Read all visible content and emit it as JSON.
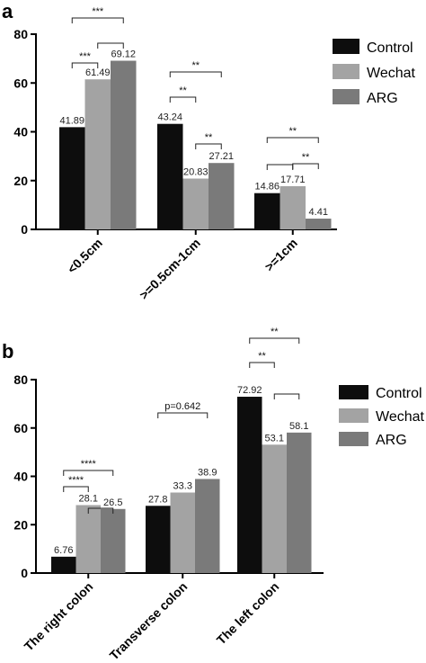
{
  "chart_data": [
    {
      "panel": "a",
      "type": "bar",
      "categories": [
        "<0.5cm",
        ">=0.5cm-1cm",
        ">=1cm"
      ],
      "series": [
        {
          "name": "Control",
          "color": "#0d0d0d",
          "values": [
            41.89,
            43.24,
            14.86
          ]
        },
        {
          "name": "Wechat",
          "color": "#a3a3a3",
          "values": [
            61.49,
            20.83,
            17.71
          ]
        },
        {
          "name": "ARG",
          "color": "#7a7a7a",
          "values": [
            69.12,
            27.21,
            4.41
          ]
        }
      ],
      "value_labels": [
        [
          "41.89",
          "61.49",
          "69.12"
        ],
        [
          "43.24",
          "20.83",
          "27.21"
        ],
        [
          "14.86",
          "17.71",
          "4.41"
        ]
      ],
      "ylim": [
        0,
        80
      ],
      "yticks": [
        0,
        20,
        40,
        60,
        80
      ],
      "legend_position": "top-right",
      "significance": [
        {
          "label": "***",
          "category": 0,
          "from": 0,
          "to": 2
        },
        {
          "label": "***",
          "category": 0,
          "from": 0,
          "to": 1
        },
        {
          "label": "",
          "category": 0,
          "from": 1,
          "to": 2
        },
        {
          "label": "**",
          "category": 1,
          "from": 0,
          "to": 2
        },
        {
          "label": "**",
          "category": 1,
          "from": 0,
          "to": 1
        },
        {
          "label": "**",
          "category": 1,
          "from": 1,
          "to": 2
        },
        {
          "label": "**",
          "category": 2,
          "from": 0,
          "to": 2
        },
        {
          "label": "",
          "category": 2,
          "from": 0,
          "to": 1
        },
        {
          "label": "**",
          "category": 2,
          "from": 1,
          "to": 2
        }
      ]
    },
    {
      "panel": "b",
      "type": "bar",
      "categories": [
        "The right colon",
        "Transverse colon",
        "The left colon"
      ],
      "series": [
        {
          "name": "Control",
          "color": "#0d0d0d",
          "values": [
            6.76,
            27.8,
            72.92
          ]
        },
        {
          "name": "Wechat",
          "color": "#a3a3a3",
          "values": [
            28.1,
            33.3,
            53.1
          ]
        },
        {
          "name": "ARG",
          "color": "#7a7a7a",
          "values": [
            26.5,
            38.9,
            58.1
          ]
        }
      ],
      "value_labels": [
        [
          "6.76",
          "28.1",
          "26.5"
        ],
        [
          "27.8",
          "33.3",
          "38.9"
        ],
        [
          "72.92",
          "53.1",
          "58.1"
        ]
      ],
      "ylim": [
        0,
        80
      ],
      "yticks": [
        0,
        20,
        40,
        60,
        80
      ],
      "legend_position": "top-right",
      "significance": [
        {
          "label": "****",
          "category": 0,
          "from": 0,
          "to": 2
        },
        {
          "label": "****",
          "category": 0,
          "from": 0,
          "to": 1
        },
        {
          "label": "",
          "category": 0,
          "from": 1,
          "to": 2
        },
        {
          "label": "p=0.642",
          "category": 1,
          "from": 0,
          "to": 2
        },
        {
          "label": "**",
          "category": 2,
          "from": 0,
          "to": 2
        },
        {
          "label": "**",
          "category": 2,
          "from": 0,
          "to": 1
        },
        {
          "label": "",
          "category": 2,
          "from": 1,
          "to": 2
        }
      ]
    }
  ]
}
